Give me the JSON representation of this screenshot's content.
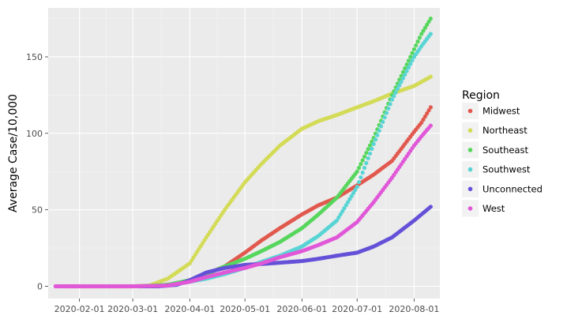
{
  "chart_data": {
    "type": "scatter",
    "title": "",
    "xlabel": "",
    "ylabel": "Average Case/10,000",
    "ylim": [
      -8,
      182
    ],
    "xlim": [
      "2020-01-15",
      "2020-08-15"
    ],
    "y_ticks": [
      0,
      50,
      100,
      150
    ],
    "x_ticks": [
      "2020-02-01",
      "2020-03-01",
      "2020-04-01",
      "2020-05-01",
      "2020-06-01",
      "2020-07-01",
      "2020-08-01"
    ],
    "grid": true,
    "legend": {
      "title": "Region",
      "position": "right"
    },
    "series": [
      {
        "name": "Midwest",
        "color": "#e1594e",
        "points": [
          [
            "2020-01-21",
            0
          ],
          [
            "2020-02-01",
            0
          ],
          [
            "2020-03-01",
            0
          ],
          [
            "2020-03-15",
            0.3
          ],
          [
            "2020-04-01",
            3
          ],
          [
            "2020-04-10",
            8
          ],
          [
            "2020-04-20",
            13
          ],
          [
            "2020-05-01",
            22
          ],
          [
            "2020-05-10",
            30
          ],
          [
            "2020-05-20",
            38
          ],
          [
            "2020-06-01",
            47
          ],
          [
            "2020-06-10",
            53
          ],
          [
            "2020-06-20",
            58
          ],
          [
            "2020-07-01",
            66
          ],
          [
            "2020-07-10",
            73
          ],
          [
            "2020-07-20",
            82
          ],
          [
            "2020-08-01",
            101
          ],
          [
            "2020-08-05",
            107
          ],
          [
            "2020-08-10",
            117
          ]
        ]
      },
      {
        "name": "Northeast",
        "color": "#d3db57",
        "points": [
          [
            "2020-02-01",
            0
          ],
          [
            "2020-03-01",
            0
          ],
          [
            "2020-03-10",
            0.5
          ],
          [
            "2020-03-20",
            5
          ],
          [
            "2020-04-01",
            15
          ],
          [
            "2020-04-10",
            32
          ],
          [
            "2020-04-20",
            50
          ],
          [
            "2020-05-01",
            68
          ],
          [
            "2020-05-10",
            80
          ],
          [
            "2020-05-20",
            92
          ],
          [
            "2020-06-01",
            103
          ],
          [
            "2020-06-10",
            108
          ],
          [
            "2020-06-20",
            112
          ],
          [
            "2020-07-01",
            117
          ],
          [
            "2020-07-10",
            121
          ],
          [
            "2020-07-20",
            126
          ],
          [
            "2020-08-01",
            131
          ],
          [
            "2020-08-10",
            137
          ]
        ]
      },
      {
        "name": "Southeast",
        "color": "#56d65c",
        "points": [
          [
            "2020-03-05",
            0
          ],
          [
            "2020-03-20",
            1
          ],
          [
            "2020-04-01",
            4
          ],
          [
            "2020-04-10",
            8
          ],
          [
            "2020-04-20",
            13
          ],
          [
            "2020-05-01",
            18
          ],
          [
            "2020-05-10",
            23
          ],
          [
            "2020-05-20",
            29
          ],
          [
            "2020-06-01",
            38
          ],
          [
            "2020-06-10",
            47
          ],
          [
            "2020-06-20",
            58
          ],
          [
            "2020-07-01",
            75
          ],
          [
            "2020-07-10",
            97
          ],
          [
            "2020-07-20",
            125
          ],
          [
            "2020-08-01",
            155
          ],
          [
            "2020-08-05",
            165
          ],
          [
            "2020-08-10",
            175
          ]
        ]
      },
      {
        "name": "Southwest",
        "color": "#59d4d4",
        "points": [
          [
            "2020-03-05",
            0
          ],
          [
            "2020-03-20",
            0.5
          ],
          [
            "2020-04-01",
            3
          ],
          [
            "2020-04-10",
            5
          ],
          [
            "2020-04-20",
            8
          ],
          [
            "2020-05-01",
            12
          ],
          [
            "2020-05-10",
            16
          ],
          [
            "2020-05-20",
            20
          ],
          [
            "2020-06-01",
            26
          ],
          [
            "2020-06-10",
            33
          ],
          [
            "2020-06-20",
            43
          ],
          [
            "2020-07-01",
            65
          ],
          [
            "2020-07-10",
            93
          ],
          [
            "2020-07-20",
            122
          ],
          [
            "2020-08-01",
            150
          ],
          [
            "2020-08-05",
            157
          ],
          [
            "2020-08-10",
            165
          ]
        ]
      },
      {
        "name": "Unconnected",
        "color": "#6451d8",
        "points": [
          [
            "2020-03-05",
            0
          ],
          [
            "2020-03-15",
            0
          ],
          [
            "2020-03-25",
            1
          ],
          [
            "2020-04-01",
            4
          ],
          [
            "2020-04-10",
            9
          ],
          [
            "2020-04-20",
            12
          ],
          [
            "2020-05-01",
            14
          ],
          [
            "2020-05-15",
            15
          ],
          [
            "2020-06-01",
            16.5
          ],
          [
            "2020-06-10",
            18
          ],
          [
            "2020-06-20",
            20
          ],
          [
            "2020-07-01",
            22
          ],
          [
            "2020-07-10",
            26
          ],
          [
            "2020-07-20",
            32
          ],
          [
            "2020-08-01",
            43
          ],
          [
            "2020-08-05",
            47
          ],
          [
            "2020-08-10",
            52
          ]
        ]
      },
      {
        "name": "West",
        "color": "#e058d8",
        "points": [
          [
            "2020-01-19",
            0
          ],
          [
            "2020-02-01",
            0
          ],
          [
            "2020-03-01",
            0
          ],
          [
            "2020-03-20",
            0.5
          ],
          [
            "2020-04-01",
            3
          ],
          [
            "2020-04-10",
            6
          ],
          [
            "2020-04-20",
            9
          ],
          [
            "2020-05-01",
            12
          ],
          [
            "2020-05-10",
            15
          ],
          [
            "2020-05-20",
            19
          ],
          [
            "2020-06-01",
            23
          ],
          [
            "2020-06-10",
            27
          ],
          [
            "2020-06-20",
            32
          ],
          [
            "2020-07-01",
            42
          ],
          [
            "2020-07-10",
            55
          ],
          [
            "2020-07-20",
            71
          ],
          [
            "2020-08-01",
            92
          ],
          [
            "2020-08-05",
            98
          ],
          [
            "2020-08-10",
            105
          ]
        ]
      }
    ]
  }
}
